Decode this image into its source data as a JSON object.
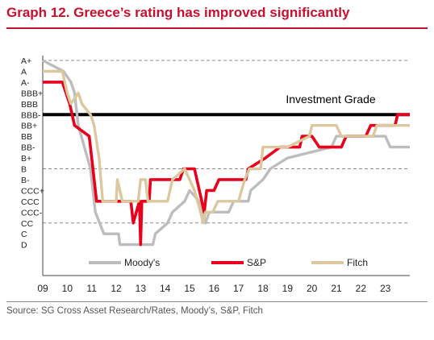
{
  "title": "Graph 12. Greece’s rating has improved significantly",
  "source": "Source: SG Cross Asset Research/Rates, Moody’s, S&P, Fitch",
  "chart_data": {
    "type": "line",
    "title": "Graph 12. Greece’s rating has improved significantly",
    "y_scale": [
      "A+",
      "A",
      "A-",
      "BBB+",
      "BBB",
      "BBB-",
      "BB+",
      "BB",
      "BB-",
      "B+",
      "B",
      "B-",
      "CCC+",
      "CCC",
      "CCC-",
      "CC",
      "C",
      "D"
    ],
    "x_ticks": [
      "09",
      "10",
      "11",
      "12",
      "13",
      "14",
      "15",
      "16",
      "17",
      "18",
      "19",
      "20",
      "21",
      "22",
      "23"
    ],
    "xlim": [
      2009,
      2024
    ],
    "grid": "dashed at A+, BBB-, B and CC",
    "reference_line": {
      "label": "Investment Grade",
      "level": "BBB-"
    },
    "legend_position": "bottom",
    "series": [
      {
        "name": "Moody's",
        "color": "#bdbdbd",
        "points": [
          [
            2009.0,
            "A+"
          ],
          [
            2009.85,
            "A"
          ],
          [
            2010.15,
            "A-"
          ],
          [
            2010.3,
            "BBB+"
          ],
          [
            2010.45,
            "BB+"
          ],
          [
            2010.95,
            "B"
          ],
          [
            2011.15,
            "CCC-"
          ],
          [
            2011.5,
            "C"
          ],
          [
            2012.1,
            "C"
          ],
          [
            2012.15,
            "D"
          ],
          [
            2013.5,
            "D"
          ],
          [
            2013.6,
            "C"
          ],
          [
            2014.1,
            "CC"
          ],
          [
            2014.3,
            "CCC-"
          ],
          [
            2014.8,
            "CCC"
          ],
          [
            2015.0,
            "CCC+"
          ],
          [
            2015.4,
            "CCC"
          ],
          [
            2015.65,
            "CC"
          ],
          [
            2015.8,
            "CCC-"
          ],
          [
            2016.6,
            "CCC-"
          ],
          [
            2016.8,
            "CCC"
          ],
          [
            2017.4,
            "CCC"
          ],
          [
            2017.5,
            "CCC+"
          ],
          [
            2018.0,
            "B-"
          ],
          [
            2018.3,
            "B"
          ],
          [
            2019.0,
            "B+"
          ],
          [
            2020.8,
            "BB-"
          ],
          [
            2021.0,
            "BB"
          ],
          [
            2023.0,
            "BB"
          ],
          [
            2023.2,
            "BB-"
          ],
          [
            2024.0,
            "BB-"
          ]
        ]
      },
      {
        "name": "S&P",
        "color": "#e8001c",
        "points": [
          [
            2009.0,
            "A-"
          ],
          [
            2009.8,
            "A-"
          ],
          [
            2009.95,
            "BBB+"
          ],
          [
            2010.1,
            "BBB"
          ],
          [
            2010.3,
            "BB+"
          ],
          [
            2010.9,
            "BB"
          ],
          [
            2011.05,
            "B"
          ],
          [
            2011.2,
            "CCC"
          ],
          [
            2012.6,
            "CCC"
          ],
          [
            2012.7,
            "CC"
          ],
          [
            2012.95,
            "CCC"
          ],
          [
            2013.0,
            "D"
          ],
          [
            2013.05,
            "CCC"
          ],
          [
            2013.35,
            "CCC"
          ],
          [
            2013.4,
            "B-"
          ],
          [
            2014.6,
            "B-"
          ],
          [
            2014.75,
            "B"
          ],
          [
            2015.2,
            "B"
          ],
          [
            2015.4,
            "CCC+"
          ],
          [
            2015.5,
            "CCC"
          ],
          [
            2015.6,
            "CCC-"
          ],
          [
            2015.7,
            "CCC+"
          ],
          [
            2016.0,
            "CCC+"
          ],
          [
            2016.2,
            "B-"
          ],
          [
            2017.3,
            "B-"
          ],
          [
            2017.4,
            "B"
          ],
          [
            2018.1,
            "B+"
          ],
          [
            2018.7,
            "BB-"
          ],
          [
            2019.5,
            "BB-"
          ],
          [
            2019.6,
            "BB"
          ],
          [
            2020.0,
            "BB"
          ],
          [
            2020.3,
            "BB-"
          ],
          [
            2021.2,
            "BB-"
          ],
          [
            2021.4,
            "BB"
          ],
          [
            2022.2,
            "BB"
          ],
          [
            2022.4,
            "BB+"
          ],
          [
            2023.4,
            "BB+"
          ],
          [
            2023.5,
            "BBB-"
          ],
          [
            2024.0,
            "BBB-"
          ]
        ]
      },
      {
        "name": "Fitch",
        "color": "#dcc89f",
        "points": [
          [
            2009.0,
            "A"
          ],
          [
            2009.8,
            "A"
          ],
          [
            2010.0,
            "BBB+"
          ],
          [
            2010.15,
            "BBB"
          ],
          [
            2010.45,
            "BBB+"
          ],
          [
            2010.6,
            "BBB"
          ],
          [
            2010.95,
            "BBB-"
          ],
          [
            2011.1,
            "BB+"
          ],
          [
            2011.3,
            "B+"
          ],
          [
            2011.45,
            "CCC"
          ],
          [
            2012.0,
            "CCC"
          ],
          [
            2012.05,
            "B-"
          ],
          [
            2012.25,
            "CCC"
          ],
          [
            2012.9,
            "CCC"
          ],
          [
            2013.0,
            "B-"
          ],
          [
            2013.2,
            "B-"
          ],
          [
            2013.3,
            "CCC"
          ],
          [
            2013.5,
            "CCC"
          ],
          [
            2014.1,
            "CCC"
          ],
          [
            2014.3,
            "B-"
          ],
          [
            2014.8,
            "B"
          ],
          [
            2015.2,
            "CCC+"
          ],
          [
            2015.45,
            "CCC-"
          ],
          [
            2015.55,
            "CC"
          ],
          [
            2015.65,
            "CCC-"
          ],
          [
            2015.95,
            "CCC-"
          ],
          [
            2016.15,
            "CCC"
          ],
          [
            2017.0,
            "CCC"
          ],
          [
            2017.25,
            "B-"
          ],
          [
            2017.45,
            "B"
          ],
          [
            2017.9,
            "B"
          ],
          [
            2018.0,
            "BB-"
          ],
          [
            2019.0,
            "BB-"
          ],
          [
            2019.9,
            "BB"
          ],
          [
            2020.0,
            "BB+"
          ],
          [
            2021.0,
            "BB+"
          ],
          [
            2021.2,
            "BB"
          ],
          [
            2022.5,
            "BB"
          ],
          [
            2022.65,
            "BB+"
          ],
          [
            2024.0,
            "BB+"
          ]
        ]
      }
    ]
  }
}
